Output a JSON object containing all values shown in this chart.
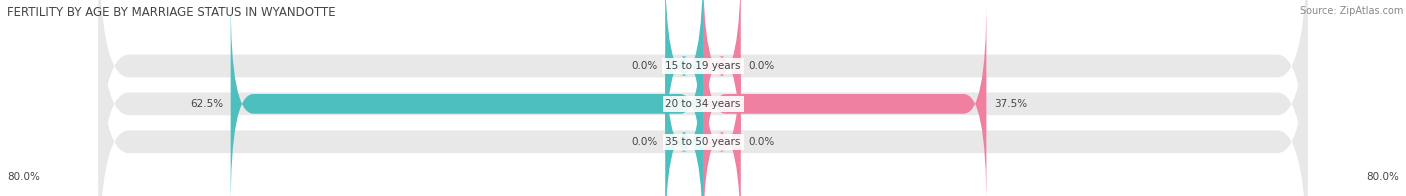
{
  "title": "FERTILITY BY AGE BY MARRIAGE STATUS IN WYANDOTTE",
  "source": "Source: ZipAtlas.com",
  "categories": [
    "15 to 19 years",
    "20 to 34 years",
    "35 to 50 years"
  ],
  "married_values": [
    0.0,
    62.5,
    0.0
  ],
  "unmarried_values": [
    0.0,
    37.5,
    0.0
  ],
  "max_val": 80.0,
  "married_color": "#4dbfbf",
  "unmarried_color": "#f080a0",
  "bar_bg_color": "#e8e8e8",
  "title_fontsize": 8.5,
  "source_fontsize": 7,
  "label_fontsize": 7.5,
  "category_fontsize": 7.5,
  "axis_label_fontsize": 7.5,
  "bar_height": 0.6,
  "background_color": "#ffffff",
  "x_left_label": "80.0%",
  "x_right_label": "80.0%",
  "small_bar_width": 5.0
}
